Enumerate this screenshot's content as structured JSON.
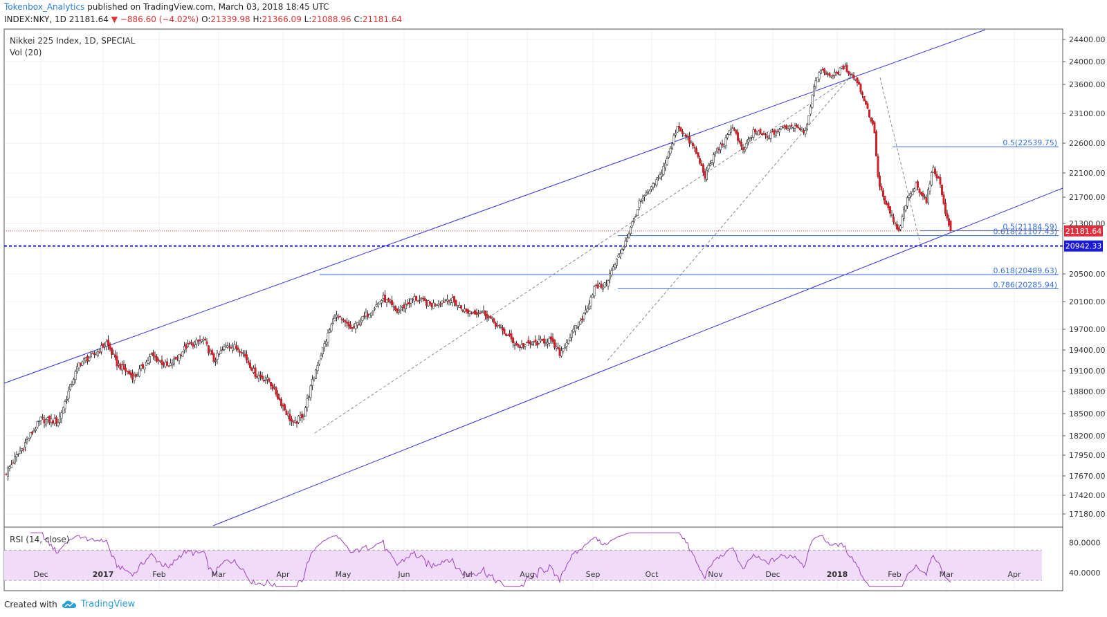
{
  "header": {
    "author": "Tokenbox_Analytics",
    "published": "published on TradingView.com, March 03, 2018 18:45 UTC",
    "symbol": "INDEX:NKY, 1D",
    "last": "21181.64",
    "arrow": "▼",
    "change": "−886.60 (−4.02%)",
    "o_label": "O:",
    "o_value": "21339.98",
    "h_label": "H:",
    "h_value": "21366.09",
    "l_label": "L:",
    "l_value": "21088.96",
    "c_label": "C:",
    "c_value": "21181.64"
  },
  "pane": {
    "title": "Nikkei 225 Index, 1D, SPECIAL",
    "volume": "Vol (20)",
    "rsi_label": "RSI (14, close)"
  },
  "footer": {
    "created_with": "Created with",
    "brand": "TradingView",
    "icon": "tradingview-cloud-icon"
  },
  "colors": {
    "up": "#ffffff",
    "down": "#d0202a",
    "candle_border": "#222222",
    "channel": "#3030e0",
    "fib": "#3a70d8",
    "price_line": "#e05050",
    "support": "#1a1ad8",
    "rsi": "#a040c0",
    "rsi_band": "#f0dcf8"
  },
  "chart_data": {
    "type": "candlestick",
    "title": "Nikkei 225 Index, 1D, SPECIAL",
    "x_ticks": [
      "Dec",
      "2017",
      "Feb",
      "Mar",
      "Apr",
      "May",
      "Jun",
      "Jul",
      "Aug",
      "Sep",
      "Oct",
      "Nov",
      "Dec",
      "2018",
      "Feb",
      "Mar",
      "Apr"
    ],
    "y_ticks": [
      24400,
      24000,
      23600,
      23100,
      22600,
      22100,
      21700,
      21300,
      20500,
      20100,
      19700,
      19400,
      19100,
      18800,
      18500,
      18200,
      17950,
      17670,
      17420,
      17180
    ],
    "y_tick_labels": [
      "24400.00",
      "24000.00",
      "23600.00",
      "23100.00",
      "22600.00",
      "22100.00",
      "21700.00",
      "21300.00",
      "20500.00",
      "20100.00",
      "19700.00",
      "19400.00",
      "19100.00",
      "18800.00",
      "18500.00",
      "18200.00",
      "17950.00",
      "17670.00",
      "17420.00",
      "17180.00"
    ],
    "price_badges": [
      {
        "label": "21181.64",
        "value": 21181.64,
        "color": "#e03040"
      },
      {
        "label": "20942.33",
        "value": 20942.33,
        "color": "#1a1ad8"
      }
    ],
    "fib_labels": [
      {
        "text": "0.5(22539.75)",
        "value": 22539.75
      },
      {
        "text": "0.5(21184.59)",
        "value": 21184.59
      },
      {
        "text": "0.618(21107.43)",
        "value": 21107.43
      },
      {
        "text": "0.618(20489.63)",
        "value": 20489.63
      },
      {
        "text": "0.786(20285.94)",
        "value": 20285.94
      }
    ],
    "rsi_ticks": [
      80,
      40
    ],
    "rsi_tick_labels": [
      "80.0000",
      "40.0000"
    ],
    "rsi_band": [
      70,
      30
    ],
    "waypoints": [
      {
        "x": 0,
        "p": 17720
      },
      {
        "x": 20,
        "p": 18420
      },
      {
        "x": 30,
        "p": 18390
      },
      {
        "x": 42,
        "p": 19200
      },
      {
        "x": 52,
        "p": 19350
      },
      {
        "x": 58,
        "p": 19510
      },
      {
        "x": 64,
        "p": 19200
      },
      {
        "x": 74,
        "p": 19000
      },
      {
        "x": 84,
        "p": 19320
      },
      {
        "x": 94,
        "p": 19150
      },
      {
        "x": 104,
        "p": 19450
      },
      {
        "x": 114,
        "p": 19550
      },
      {
        "x": 120,
        "p": 19250
      },
      {
        "x": 128,
        "p": 19480
      },
      {
        "x": 136,
        "p": 19400
      },
      {
        "x": 144,
        "p": 19050
      },
      {
        "x": 152,
        "p": 18950
      },
      {
        "x": 160,
        "p": 18600
      },
      {
        "x": 166,
        "p": 18350
      },
      {
        "x": 172,
        "p": 18500
      },
      {
        "x": 180,
        "p": 19200
      },
      {
        "x": 190,
        "p": 19900
      },
      {
        "x": 200,
        "p": 19700
      },
      {
        "x": 210,
        "p": 19950
      },
      {
        "x": 218,
        "p": 20150
      },
      {
        "x": 226,
        "p": 19950
      },
      {
        "x": 236,
        "p": 20150
      },
      {
        "x": 246,
        "p": 20050
      },
      {
        "x": 256,
        "p": 20150
      },
      {
        "x": 266,
        "p": 19950
      },
      {
        "x": 276,
        "p": 19950
      },
      {
        "x": 286,
        "p": 19700
      },
      {
        "x": 296,
        "p": 19450
      },
      {
        "x": 306,
        "p": 19500
      },
      {
        "x": 314,
        "p": 19550
      },
      {
        "x": 320,
        "p": 19350
      },
      {
        "x": 326,
        "p": 19600
      },
      {
        "x": 334,
        "p": 19900
      },
      {
        "x": 340,
        "p": 20300
      },
      {
        "x": 346,
        "p": 20330
      },
      {
        "x": 352,
        "p": 20650
      },
      {
        "x": 356,
        "p": 20900
      },
      {
        "x": 360,
        "p": 21150
      },
      {
        "x": 366,
        "p": 21600
      },
      {
        "x": 372,
        "p": 21800
      },
      {
        "x": 378,
        "p": 22050
      },
      {
        "x": 384,
        "p": 22500
      },
      {
        "x": 388,
        "p": 22900
      },
      {
        "x": 392,
        "p": 22750
      },
      {
        "x": 398,
        "p": 22500
      },
      {
        "x": 404,
        "p": 22050
      },
      {
        "x": 410,
        "p": 22450
      },
      {
        "x": 416,
        "p": 22650
      },
      {
        "x": 420,
        "p": 22900
      },
      {
        "x": 426,
        "p": 22450
      },
      {
        "x": 432,
        "p": 22800
      },
      {
        "x": 440,
        "p": 22700
      },
      {
        "x": 448,
        "p": 22850
      },
      {
        "x": 456,
        "p": 22900
      },
      {
        "x": 462,
        "p": 22800
      },
      {
        "x": 466,
        "p": 23400
      },
      {
        "x": 470,
        "p": 23850
      },
      {
        "x": 478,
        "p": 23750
      },
      {
        "x": 484,
        "p": 23900
      },
      {
        "x": 488,
        "p": 23800
      },
      {
        "x": 492,
        "p": 23650
      },
      {
        "x": 496,
        "p": 23350
      },
      {
        "x": 502,
        "p": 22800
      },
      {
        "x": 504,
        "p": 22000
      },
      {
        "x": 508,
        "p": 21600
      },
      {
        "x": 512,
        "p": 21400
      },
      {
        "x": 516,
        "p": 21150
      },
      {
        "x": 520,
        "p": 21600
      },
      {
        "x": 526,
        "p": 21900
      },
      {
        "x": 532,
        "p": 21650
      },
      {
        "x": 536,
        "p": 22200
      },
      {
        "x": 540,
        "p": 21900
      },
      {
        "x": 544,
        "p": 21350
      },
      {
        "x": 546,
        "p": 21181.64
      }
    ]
  }
}
